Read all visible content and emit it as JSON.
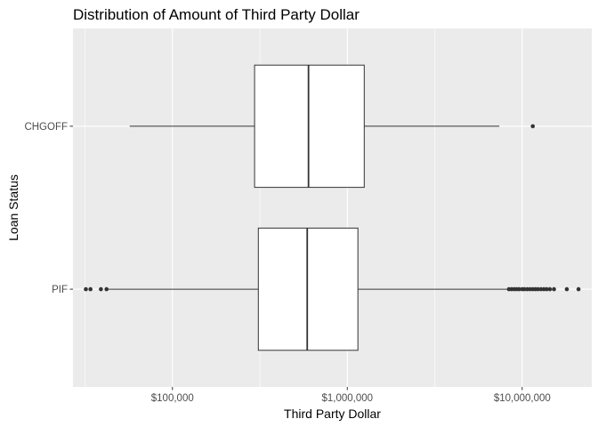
{
  "chart_data": {
    "type": "boxplot",
    "orientation": "horizontal",
    "title": "Distribution of Amount of Third Party Dollar",
    "xlabel": "Third Party Dollar",
    "ylabel": "Loan Status",
    "x_scale": "log10",
    "xlim": [
      27000,
      25000000
    ],
    "x_ticks": [
      {
        "value": 100000,
        "label": "$100,000"
      },
      {
        "value": 1000000,
        "label": "$1,000,000"
      },
      {
        "value": 10000000,
        "label": "$10,000,000"
      }
    ],
    "grid": true,
    "legend": "none",
    "categories": [
      "PIF",
      "CHGOFF"
    ],
    "boxes": [
      {
        "category": "PIF",
        "whisker_low": 43000,
        "q1": 310000,
        "median": 590000,
        "q3": 1150000,
        "whisker_high": 8300000,
        "outliers": [
          32000,
          34000,
          39000,
          42000,
          8400000,
          8700000,
          9000000,
          9300000,
          9600000,
          10000000,
          10300000,
          10700000,
          11100000,
          11500000,
          11900000,
          12300000,
          12800000,
          13300000,
          13800000,
          14400000,
          15200000,
          18000000,
          21000000
        ]
      },
      {
        "category": "CHGOFF",
        "whisker_low": 57000,
        "q1": 295000,
        "median": 600000,
        "q3": 1250000,
        "whisker_high": 7400000,
        "outliers": [
          11500000
        ]
      }
    ]
  },
  "colors": {
    "panel_background": "#ebebeb",
    "grid": "#ffffff",
    "box_fill": "#ffffff",
    "line": "#333333",
    "point": "#333333"
  }
}
